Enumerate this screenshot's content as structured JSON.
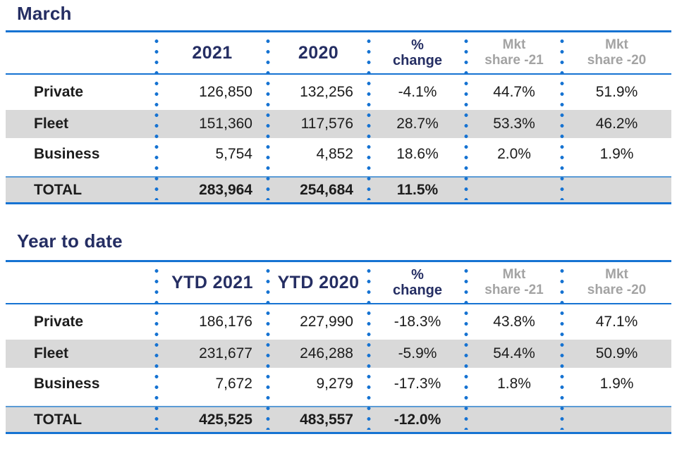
{
  "colors": {
    "navy": "#252e63",
    "blue": "#1673d2",
    "light-blue": "#5b9bd5",
    "row-gray": "#d9d9d9",
    "muted-gray": "#a3a3a3",
    "ink": "#1c1c1c"
  },
  "chart_data": [
    {
      "type": "table",
      "title": "March",
      "columns": [
        "",
        "2021",
        "2020",
        "%\nchange",
        "Mkt\nshare -21",
        "Mkt\nshare -20"
      ],
      "rows": [
        [
          "Private",
          "126,850",
          "132,256",
          "-4.1%",
          "44.7%",
          "51.9%"
        ],
        [
          "Fleet",
          "151,360",
          "117,576",
          "28.7%",
          "53.3%",
          "46.2%"
        ],
        [
          "Business",
          "5,754",
          "4,852",
          "18.6%",
          "2.0%",
          "1.9%"
        ],
        [
          "TOTAL",
          "283,964",
          "254,684",
          "11.5%",
          "",
          ""
        ]
      ]
    },
    {
      "type": "table",
      "title": "Year to date",
      "columns": [
        "",
        "YTD 2021",
        "YTD 2020",
        "%\nchange",
        "Mkt\nshare -21",
        "Mkt\nshare -20"
      ],
      "rows": [
        [
          "Private",
          "186,176",
          "227,990",
          "-18.3%",
          "43.8%",
          "47.1%"
        ],
        [
          "Fleet",
          "231,677",
          "246,288",
          "-5.9%",
          "54.4%",
          "50.9%"
        ],
        [
          "Business",
          "7,672",
          "9,279",
          "-17.3%",
          "1.8%",
          "1.9%"
        ],
        [
          "TOTAL",
          "425,525",
          "483,557",
          "-12.0%",
          "",
          ""
        ]
      ]
    }
  ]
}
